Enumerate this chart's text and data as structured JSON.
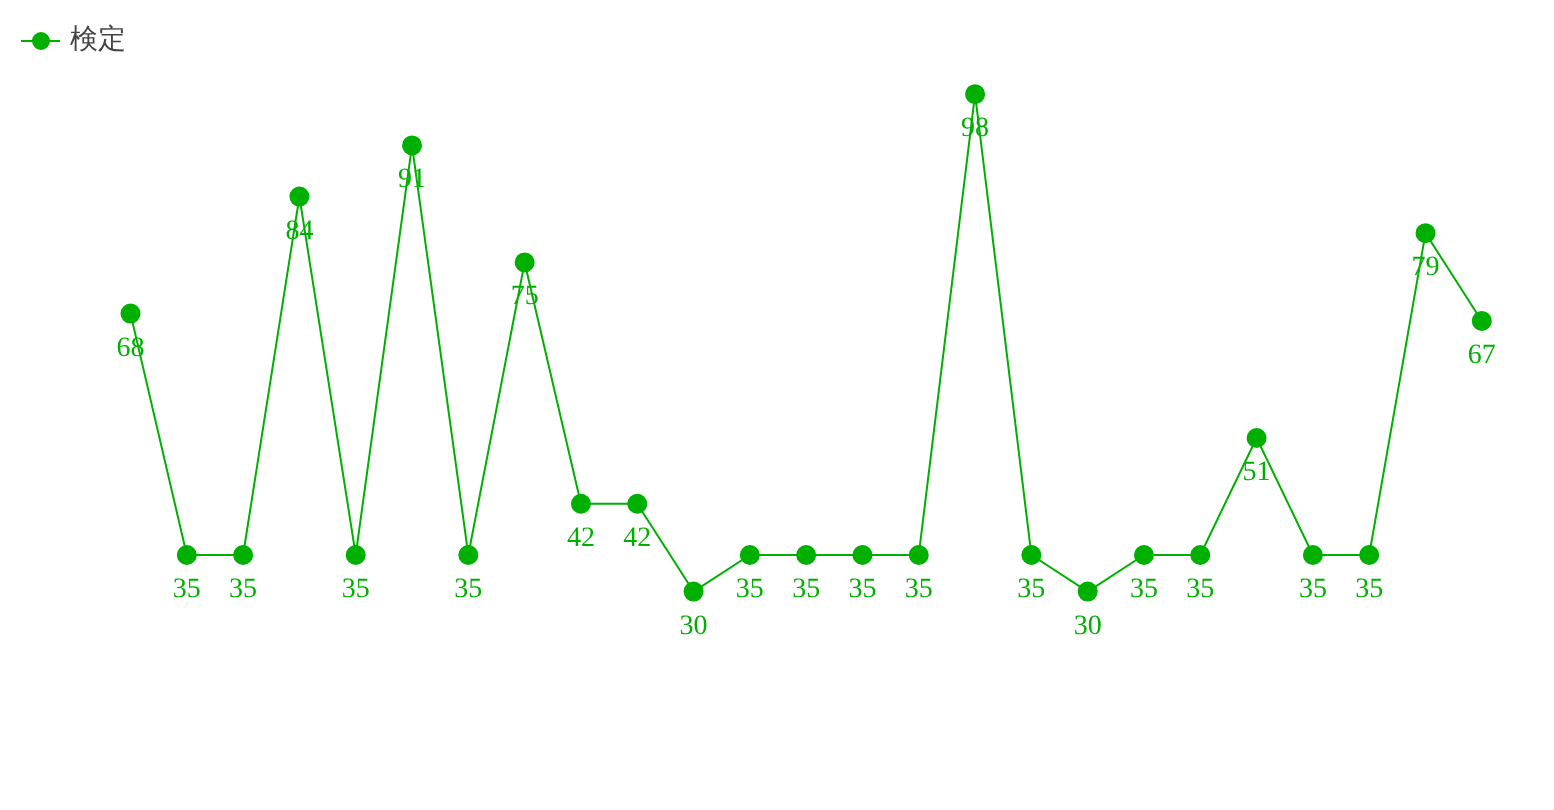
{
  "chart_data": {
    "type": "line",
    "categories": [
      null,
      null,
      null,
      null,
      null,
      null,
      null,
      null,
      null,
      null,
      null,
      null,
      null,
      null,
      null,
      null,
      null,
      null,
      null,
      null,
      null,
      null,
      null,
      null,
      null
    ],
    "series": [
      {
        "name": "検定",
        "color": "#00b000",
        "values": [
          68,
          35,
          35,
          84,
          35,
          91,
          35,
          75,
          42,
          42,
          30,
          35,
          35,
          35,
          35,
          98,
          35,
          30,
          35,
          35,
          51,
          35,
          35,
          79,
          67
        ]
      }
    ],
    "data_labels": true,
    "legend": "top left",
    "marker": "circle",
    "grid": false
  }
}
